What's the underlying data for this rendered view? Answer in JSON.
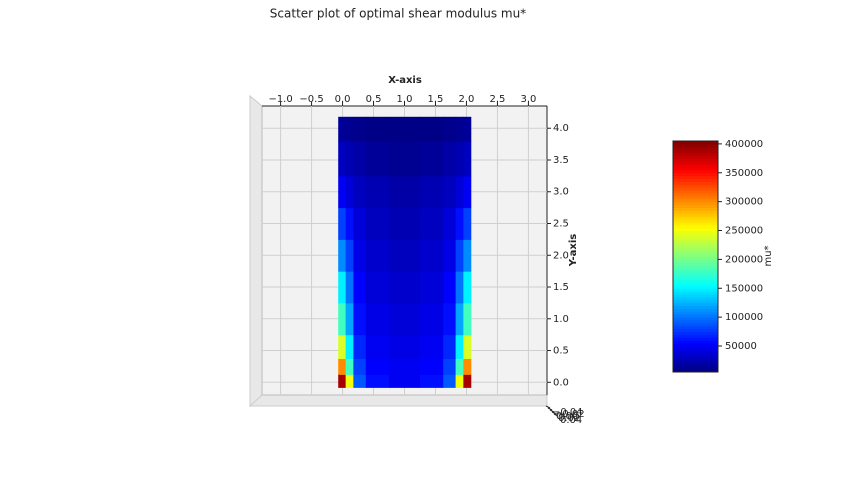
{
  "chart_data": {
    "type": "scatter",
    "title": "Scatter plot of optimal shear modulus mu*",
    "xlabel": "X-axis",
    "ylabel": "Y-axis",
    "xlim": [
      -1.3,
      3.3
    ],
    "ylim": [
      -0.2,
      4.35
    ],
    "xticks": [
      {
        "value": -1.0,
        "label": "−1.0"
      },
      {
        "value": -0.5,
        "label": "−0.5"
      },
      {
        "value": 0.0,
        "label": "0.0"
      },
      {
        "value": 0.5,
        "label": "0.5"
      },
      {
        "value": 1.0,
        "label": "1.0"
      },
      {
        "value": 1.5,
        "label": "1.5"
      },
      {
        "value": 2.0,
        "label": "2.0"
      },
      {
        "value": 2.5,
        "label": "2.5"
      },
      {
        "value": 3.0,
        "label": "3.0"
      }
    ],
    "yticks": [
      {
        "value": 0.0,
        "label": "0.0"
      },
      {
        "value": 0.5,
        "label": "0.5"
      },
      {
        "value": 1.0,
        "label": "1.0"
      },
      {
        "value": 1.5,
        "label": "1.5"
      },
      {
        "value": 2.0,
        "label": "2.0"
      },
      {
        "value": 2.5,
        "label": "2.5"
      },
      {
        "value": 3.0,
        "label": "3.0"
      },
      {
        "value": 3.5,
        "label": "3.5"
      },
      {
        "value": 4.0,
        "label": "4.0"
      }
    ],
    "zticks": [
      {
        "value": -0.04,
        "label": "−0.04"
      },
      {
        "value": -0.02,
        "label": "−0.02"
      },
      {
        "value": 0.0,
        "label": "0.00"
      },
      {
        "value": 0.02,
        "label": "0.02"
      },
      {
        "value": 0.04,
        "label": "0.04"
      }
    ],
    "grid": true,
    "colormap": "jet",
    "colorbar_label": "mu*",
    "clim": [
      5000,
      405000
    ],
    "colorbar_ticks": [
      50000,
      100000,
      150000,
      200000,
      250000,
      300000,
      350000,
      400000
    ],
    "x": [
      0.0,
      0.1,
      0.25,
      0.5,
      1.0,
      1.5,
      1.75,
      1.9,
      2.0,
      0.0,
      0.1,
      0.25,
      0.5,
      1.0,
      1.5,
      1.75,
      1.9,
      2.0,
      0.0,
      0.1,
      0.25,
      0.5,
      1.0,
      1.5,
      1.75,
      1.9,
      2.0,
      0.0,
      0.1,
      0.25,
      0.5,
      1.0,
      1.5,
      1.75,
      1.9,
      2.0,
      0.0,
      0.1,
      0.25,
      0.5,
      1.0,
      1.5,
      1.75,
      1.9,
      2.0,
      0.0,
      0.1,
      0.25,
      0.5,
      1.0,
      1.5,
      1.75,
      1.9,
      2.0,
      0.0,
      0.1,
      0.25,
      0.5,
      1.0,
      1.5,
      1.75,
      1.9,
      2.0,
      0.0,
      0.1,
      0.25,
      0.5,
      1.0,
      1.5,
      1.75,
      1.9,
      2.0,
      0.0,
      0.1,
      0.25,
      0.5,
      1.0,
      1.5,
      1.75,
      1.9,
      2.0,
      0.0,
      0.1,
      0.25,
      0.5,
      1.0,
      1.5,
      1.75,
      1.9,
      2.0
    ],
    "y": [
      0,
      0,
      0,
      0,
      0,
      0,
      0,
      0,
      0,
      0.25,
      0.25,
      0.25,
      0.25,
      0.25,
      0.25,
      0.25,
      0.25,
      0.25,
      0.5,
      0.5,
      0.5,
      0.5,
      0.5,
      0.5,
      0.5,
      0.5,
      0.5,
      1,
      1,
      1,
      1,
      1,
      1,
      1,
      1,
      1,
      1.5,
      1.5,
      1.5,
      1.5,
      1.5,
      1.5,
      1.5,
      1.5,
      1.5,
      2,
      2,
      2,
      2,
      2,
      2,
      2,
      2,
      2,
      2.5,
      2.5,
      2.5,
      2.5,
      2.5,
      2.5,
      2.5,
      2.5,
      2.5,
      3,
      3,
      3,
      3,
      3,
      3,
      3,
      3,
      3,
      3.5,
      3.5,
      3.5,
      3.5,
      3.5,
      3.5,
      3.5,
      3.5,
      3.5,
      4.1,
      4.1,
      4.1,
      4.1,
      4.1,
      4.1,
      4.1,
      4.1,
      4.1
    ],
    "values": [
      390000,
      250000,
      90000,
      60000,
      50000,
      60000,
      90000,
      250000,
      390000,
      300000,
      180000,
      80000,
      55000,
      50000,
      55000,
      80000,
      180000,
      300000,
      240000,
      150000,
      70000,
      50000,
      45000,
      50000,
      70000,
      150000,
      240000,
      180000,
      120000,
      60000,
      45000,
      40000,
      45000,
      60000,
      120000,
      180000,
      150000,
      100000,
      55000,
      40000,
      35000,
      40000,
      55000,
      100000,
      150000,
      110000,
      80000,
      45000,
      35000,
      30000,
      35000,
      45000,
      80000,
      110000,
      80000,
      60000,
      40000,
      30000,
      25000,
      30000,
      40000,
      60000,
      80000,
      50000,
      40000,
      30000,
      25000,
      20000,
      25000,
      30000,
      40000,
      50000,
      30000,
      25000,
      20000,
      15000,
      12000,
      15000,
      20000,
      25000,
      30000,
      15000,
      12000,
      10000,
      8000,
      8000,
      8000,
      10000,
      12000,
      15000
    ]
  }
}
